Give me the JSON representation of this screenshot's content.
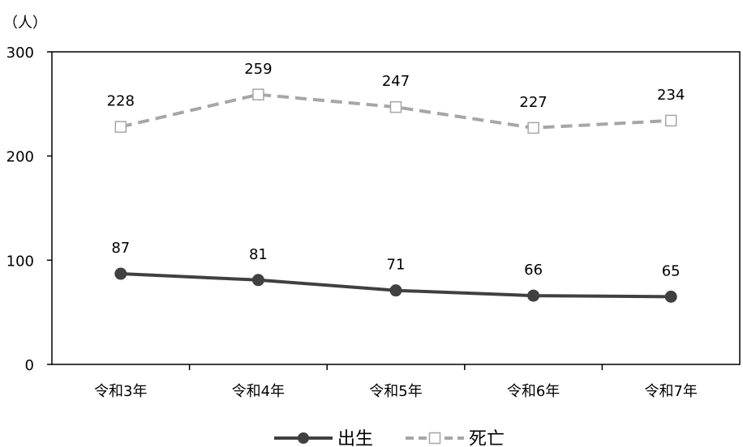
{
  "chart_data": {
    "type": "line",
    "unit_label": "（人）",
    "categories": [
      "令和3年",
      "令和4年",
      "令和5年",
      "令和6年",
      "令和7年"
    ],
    "ylim": [
      0,
      300
    ],
    "yticks": [
      0,
      100,
      200,
      300
    ],
    "grid": false,
    "legend_position": "bottom",
    "series": [
      {
        "name": "出生",
        "values": [
          87,
          81,
          71,
          66,
          65
        ],
        "color": "#404040",
        "style": "solid",
        "marker": "filled-circle"
      },
      {
        "name": "死亡",
        "values": [
          228,
          259,
          247,
          227,
          234
        ],
        "color": "#a6a6a6",
        "style": "dashed",
        "marker": "open-square"
      }
    ]
  }
}
